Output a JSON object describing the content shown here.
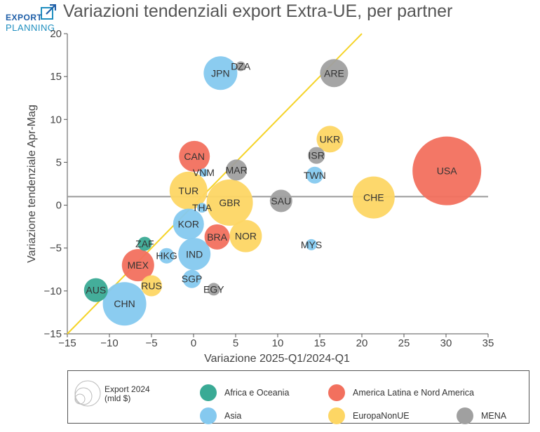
{
  "logo": {
    "line1": "EXPORT",
    "line2": "PLANNING"
  },
  "title": "Variazioni tendenziali export Extra-UE, per partner",
  "colors": {
    "Africa e Oceania": "#3aaa95",
    "America Latina e Nord America": "#f2705e",
    "Asia": "#85c9ef",
    "EuropaNonUE": "#fdd664",
    "MENA": "#a0a0a0",
    "diagonal": "#f5d327",
    "hline": "#9a9a9a"
  },
  "chart_data": {
    "type": "scatter",
    "title": "Variazioni tendenziali export Extra-UE, per partner",
    "xlabel": "Variazione 2025-Q1/2024-Q1",
    "ylabel": "Variazione tendenziale Apr-Mag",
    "xlim": [
      -15,
      35
    ],
    "ylim": [
      -15,
      20
    ],
    "xticks": [
      -15,
      -10,
      -5,
      0,
      5,
      10,
      15,
      20,
      25,
      30,
      35
    ],
    "yticks": [
      -15,
      -10,
      -5,
      0,
      5,
      10,
      15,
      20
    ],
    "tick_labels_x": [
      "−15",
      "−10",
      "−5",
      "0",
      "5",
      "10",
      "15",
      "20",
      "25",
      "30",
      "35"
    ],
    "tick_labels_y": [
      "−15",
      "−10",
      "−5",
      "0",
      "5",
      "10",
      "15",
      "20"
    ],
    "grid": false,
    "reference_lines": {
      "diagonal": "y = x",
      "horizontal_y": 1
    },
    "size_legend": {
      "label_line1": "Export 2024",
      "label_line2": "(mld $)"
    },
    "legend": [
      {
        "name": "Africa e Oceania"
      },
      {
        "name": "America Latina e Nord America"
      },
      {
        "name": "Asia"
      },
      {
        "name": "EuropaNonUE"
      },
      {
        "name": "MENA"
      }
    ],
    "points": [
      {
        "label": "USA",
        "group": "America Latina e Nord America",
        "x": 30.1,
        "y": 4.0,
        "r": 49
      },
      {
        "label": "CHE",
        "group": "EuropaNonUE",
        "x": 21.4,
        "y": 0.9,
        "r": 30
      },
      {
        "label": "GBR",
        "group": "EuropaNonUE",
        "x": 4.3,
        "y": 0.3,
        "r": 33
      },
      {
        "label": "CHN",
        "group": "Asia",
        "x": -8.2,
        "y": -11.5,
        "r": 31
      },
      {
        "label": "TUR",
        "group": "EuropaNonUE",
        "x": -0.6,
        "y": 1.7,
        "r": 27
      },
      {
        "label": "JPN",
        "group": "Asia",
        "x": 3.2,
        "y": 15.4,
        "r": 24
      },
      {
        "label": "IND",
        "group": "Asia",
        "x": 0.1,
        "y": -5.7,
        "r": 23
      },
      {
        "label": "KOR",
        "group": "Asia",
        "x": -0.6,
        "y": -2.2,
        "r": 22
      },
      {
        "label": "NOR",
        "group": "EuropaNonUE",
        "x": 6.2,
        "y": -3.6,
        "r": 23
      },
      {
        "label": "CAN",
        "group": "America Latina e Nord America",
        "x": 0.1,
        "y": 5.7,
        "r": 22
      },
      {
        "label": "MEX",
        "group": "America Latina e Nord America",
        "x": -6.6,
        "y": -7.0,
        "r": 23
      },
      {
        "label": "ARE",
        "group": "MENA",
        "x": 16.7,
        "y": 15.4,
        "r": 20
      },
      {
        "label": "UKR",
        "group": "EuropaNonUE",
        "x": 16.2,
        "y": 7.7,
        "r": 19
      },
      {
        "label": "BRA",
        "group": "America Latina e Nord America",
        "x": 2.8,
        "y": -3.7,
        "r": 18
      },
      {
        "label": "SAU",
        "group": "MENA",
        "x": 10.4,
        "y": 0.5,
        "r": 16
      },
      {
        "label": "AUS",
        "group": "Africa e Oceania",
        "x": -11.6,
        "y": -9.9,
        "r": 17
      },
      {
        "label": "MAR",
        "group": "MENA",
        "x": 5.1,
        "y": 4.1,
        "r": 15
      },
      {
        "label": "RUS",
        "group": "EuropaNonUE",
        "x": -5.0,
        "y": -9.4,
        "r": 15
      },
      {
        "label": "ISR",
        "group": "MENA",
        "x": 14.6,
        "y": 5.8,
        "r": 12
      },
      {
        "label": "TWN",
        "group": "Asia",
        "x": 14.4,
        "y": 3.5,
        "r": 12
      },
      {
        "label": "SGP",
        "group": "Asia",
        "x": -0.2,
        "y": -8.6,
        "r": 13
      },
      {
        "label": "HKG",
        "group": "Asia",
        "x": -3.2,
        "y": -5.9,
        "r": 11
      },
      {
        "label": "ZAF",
        "group": "Africa e Oceania",
        "x": -5.8,
        "y": -4.5,
        "r": 10
      },
      {
        "label": "EGY",
        "group": "MENA",
        "x": 2.4,
        "y": -9.8,
        "r": 9
      },
      {
        "label": "MYS",
        "group": "Asia",
        "x": 14.0,
        "y": -4.6,
        "r": 8
      },
      {
        "label": "VNM",
        "group": "Asia",
        "x": 1.2,
        "y": 3.8,
        "r": 6
      },
      {
        "label": "THA",
        "group": "Asia",
        "x": 1.0,
        "y": -0.3,
        "r": 7
      },
      {
        "label": "DZA",
        "group": "MENA",
        "x": 5.6,
        "y": 16.2,
        "r": 7
      }
    ]
  }
}
